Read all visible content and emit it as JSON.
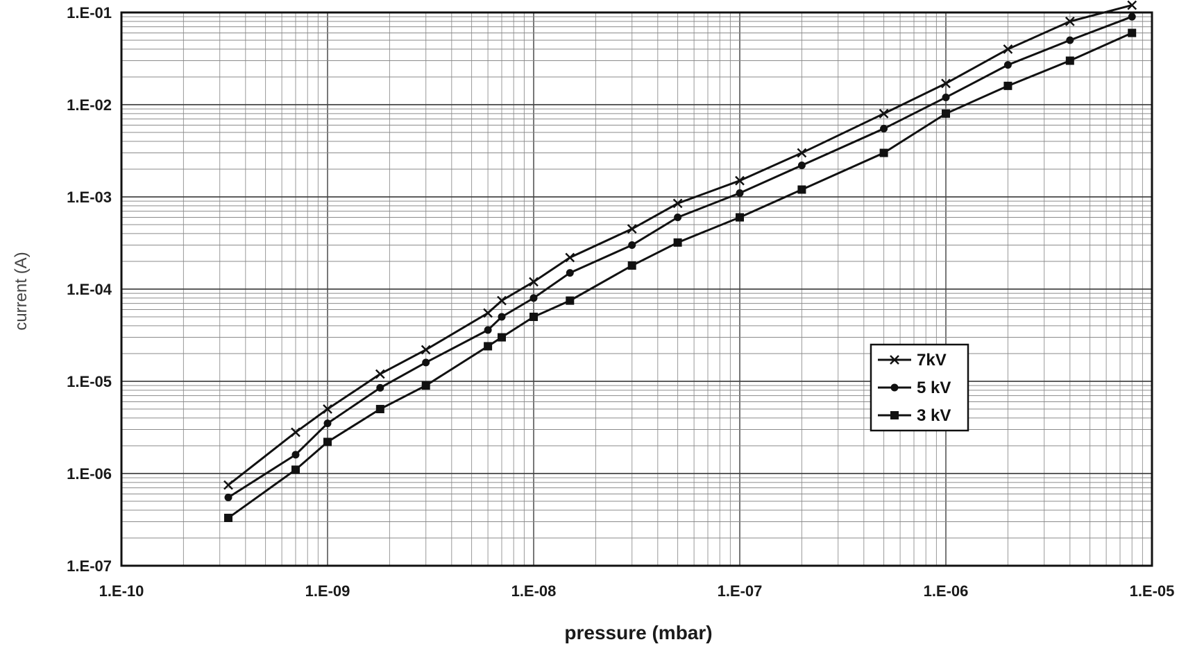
{
  "chart_data": {
    "type": "line",
    "xlabel": "pressure (mbar)",
    "ylabel": "current (A)",
    "xscale": "log",
    "yscale": "log",
    "xlim": [
      1e-10,
      1e-05
    ],
    "ylim": [
      1e-07,
      0.1
    ],
    "x_tick_labels": [
      "1.E-10",
      "1.E-09",
      "1.E-08",
      "1.E-07",
      "1.E-06",
      "1.E-05"
    ],
    "y_tick_labels": [
      "1.E-07",
      "1.E-06",
      "1.E-05",
      "1.E-04",
      "1.E-03",
      "1.E-02",
      "1.E-01"
    ],
    "grid": true,
    "legend_position": "lower-right",
    "series": [
      {
        "name": "7kV",
        "marker": "x",
        "x": [
          3.3e-10,
          7e-10,
          1e-09,
          1.8e-09,
          3e-09,
          6e-09,
          7e-09,
          1e-08,
          1.5e-08,
          3e-08,
          5e-08,
          1e-07,
          2e-07,
          5e-07,
          1e-06,
          2e-06,
          4e-06,
          8e-06
        ],
        "y": [
          7.5e-07,
          2.8e-06,
          5e-06,
          1.2e-05,
          2.2e-05,
          5.5e-05,
          7.5e-05,
          0.00012,
          0.00022,
          0.00045,
          0.00085,
          0.0015,
          0.003,
          0.008,
          0.017,
          0.04,
          0.08,
          0.12
        ]
      },
      {
        "name": "5 kV",
        "marker": "circle",
        "x": [
          3.3e-10,
          7e-10,
          1e-09,
          1.8e-09,
          3e-09,
          6e-09,
          7e-09,
          1e-08,
          1.5e-08,
          3e-08,
          5e-08,
          1e-07,
          2e-07,
          5e-07,
          1e-06,
          2e-06,
          4e-06,
          8e-06
        ],
        "y": [
          5.5e-07,
          1.6e-06,
          3.5e-06,
          8.5e-06,
          1.6e-05,
          3.6e-05,
          5e-05,
          8e-05,
          0.00015,
          0.0003,
          0.0006,
          0.0011,
          0.0022,
          0.0055,
          0.012,
          0.027,
          0.05,
          0.09
        ]
      },
      {
        "name": "3 kV",
        "marker": "square",
        "x": [
          3.3e-10,
          7e-10,
          1e-09,
          1.8e-09,
          3e-09,
          6e-09,
          7e-09,
          1e-08,
          1.5e-08,
          3e-08,
          5e-08,
          1e-07,
          2e-07,
          5e-07,
          1e-06,
          2e-06,
          4e-06,
          8e-06
        ],
        "y": [
          3.3e-07,
          1.1e-06,
          2.2e-06,
          5e-06,
          9e-06,
          2.4e-05,
          3e-05,
          5e-05,
          7.5e-05,
          0.00018,
          0.00032,
          0.0006,
          0.0012,
          0.003,
          0.008,
          0.016,
          0.03,
          0.06
        ]
      }
    ]
  }
}
